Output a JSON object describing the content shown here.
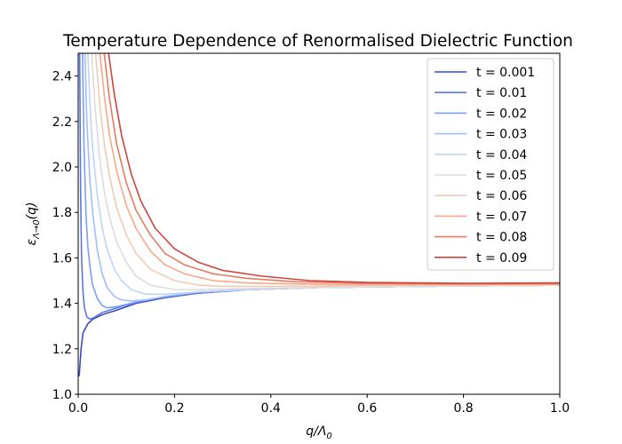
{
  "chart_data": {
    "type": "line",
    "title": "Temperature Dependence of Renormalised Dielectric Function",
    "xlabel": "q/Λ0",
    "xlabel_main": "q/Λ",
    "xlabel_sub": "0",
    "ylabel": "εΛ→0(q)",
    "ylabel_main": "ε",
    "ylabel_sub": "Λ→0",
    "ylabel_tail": "(q)",
    "xlim": [
      0.0,
      1.0
    ],
    "ylim": [
      1.0,
      2.5
    ],
    "xticks": [
      "0.0",
      "0.2",
      "0.4",
      "0.6",
      "0.8",
      "1.0"
    ],
    "yticks": [
      "1.0",
      "1.2",
      "1.4",
      "1.6",
      "1.8",
      "2.0",
      "2.2",
      "2.4"
    ],
    "legend_position": "top-right",
    "series": [
      {
        "name": "t = 0.001",
        "color": "#3b4cc0",
        "points": [
          [
            0.002,
            1.08
          ],
          [
            0.006,
            1.2
          ],
          [
            0.01,
            1.27
          ],
          [
            0.02,
            1.31
          ],
          [
            0.03,
            1.33
          ],
          [
            0.05,
            1.35
          ],
          [
            0.08,
            1.37
          ],
          [
            0.12,
            1.4
          ],
          [
            0.18,
            1.425
          ],
          [
            0.25,
            1.445
          ],
          [
            0.35,
            1.46
          ],
          [
            0.5,
            1.47
          ],
          [
            0.7,
            1.475
          ],
          [
            1.0,
            1.48
          ]
        ]
      },
      {
        "name": "t = 0.01",
        "color": "#5a78e4",
        "points": [
          [
            0.003,
            2.5
          ],
          [
            0.005,
            1.9
          ],
          [
            0.007,
            1.6
          ],
          [
            0.01,
            1.45
          ],
          [
            0.013,
            1.38
          ],
          [
            0.018,
            1.34
          ],
          [
            0.025,
            1.33
          ],
          [
            0.035,
            1.34
          ],
          [
            0.05,
            1.36
          ],
          [
            0.08,
            1.38
          ],
          [
            0.12,
            1.405
          ],
          [
            0.18,
            1.43
          ],
          [
            0.25,
            1.445
          ],
          [
            0.35,
            1.46
          ],
          [
            0.5,
            1.47
          ],
          [
            0.7,
            1.475
          ],
          [
            1.0,
            1.48
          ]
        ]
      },
      {
        "name": "t = 0.02",
        "color": "#7b9ff9",
        "points": [
          [
            0.009,
            2.5
          ],
          [
            0.012,
            2.1
          ],
          [
            0.016,
            1.8
          ],
          [
            0.02,
            1.65
          ],
          [
            0.025,
            1.55
          ],
          [
            0.03,
            1.48
          ],
          [
            0.04,
            1.42
          ],
          [
            0.05,
            1.39
          ],
          [
            0.06,
            1.38
          ],
          [
            0.08,
            1.385
          ],
          [
            0.12,
            1.405
          ],
          [
            0.18,
            1.43
          ],
          [
            0.25,
            1.45
          ],
          [
            0.35,
            1.46
          ],
          [
            0.5,
            1.47
          ],
          [
            0.7,
            1.475
          ],
          [
            1.0,
            1.48
          ]
        ]
      },
      {
        "name": "t = 0.03",
        "color": "#9ebeff",
        "points": [
          [
            0.014,
            2.5
          ],
          [
            0.018,
            2.2
          ],
          [
            0.024,
            1.95
          ],
          [
            0.03,
            1.8
          ],
          [
            0.04,
            1.63
          ],
          [
            0.05,
            1.53
          ],
          [
            0.06,
            1.47
          ],
          [
            0.075,
            1.43
          ],
          [
            0.09,
            1.415
          ],
          [
            0.11,
            1.41
          ],
          [
            0.14,
            1.415
          ],
          [
            0.18,
            1.43
          ],
          [
            0.25,
            1.45
          ],
          [
            0.35,
            1.46
          ],
          [
            0.5,
            1.47
          ],
          [
            0.7,
            1.475
          ],
          [
            1.0,
            1.48
          ]
        ]
      },
      {
        "name": "t = 0.04",
        "color": "#c0d4f5",
        "points": [
          [
            0.02,
            2.5
          ],
          [
            0.025,
            2.25
          ],
          [
            0.03,
            2.08
          ],
          [
            0.04,
            1.87
          ],
          [
            0.05,
            1.73
          ],
          [
            0.06,
            1.64
          ],
          [
            0.075,
            1.55
          ],
          [
            0.09,
            1.5
          ],
          [
            0.11,
            1.46
          ],
          [
            0.14,
            1.44
          ],
          [
            0.18,
            1.44
          ],
          [
            0.25,
            1.45
          ],
          [
            0.35,
            1.46
          ],
          [
            0.5,
            1.47
          ],
          [
            0.7,
            1.475
          ],
          [
            1.0,
            1.48
          ]
        ]
      },
      {
        "name": "t = 0.05",
        "color": "#dddcdc",
        "points": [
          [
            0.028,
            2.5
          ],
          [
            0.035,
            2.26
          ],
          [
            0.045,
            2.03
          ],
          [
            0.055,
            1.88
          ],
          [
            0.065,
            1.78
          ],
          [
            0.08,
            1.67
          ],
          [
            0.1,
            1.58
          ],
          [
            0.12,
            1.52
          ],
          [
            0.15,
            1.48
          ],
          [
            0.2,
            1.46
          ],
          [
            0.25,
            1.46
          ],
          [
            0.35,
            1.465
          ],
          [
            0.5,
            1.47
          ],
          [
            0.7,
            1.475
          ],
          [
            1.0,
            1.48
          ]
        ]
      },
      {
        "name": "t = 0.06",
        "color": "#f2cbb7",
        "points": [
          [
            0.036,
            2.5
          ],
          [
            0.045,
            2.27
          ],
          [
            0.055,
            2.09
          ],
          [
            0.065,
            1.96
          ],
          [
            0.08,
            1.82
          ],
          [
            0.1,
            1.7
          ],
          [
            0.12,
            1.62
          ],
          [
            0.15,
            1.55
          ],
          [
            0.2,
            1.5
          ],
          [
            0.25,
            1.48
          ],
          [
            0.3,
            1.475
          ],
          [
            0.4,
            1.475
          ],
          [
            0.6,
            1.478
          ],
          [
            0.8,
            1.48
          ],
          [
            1.0,
            1.48
          ]
        ]
      },
      {
        "name": "t = 0.07",
        "color": "#f7a889",
        "points": [
          [
            0.045,
            2.5
          ],
          [
            0.055,
            2.3
          ],
          [
            0.065,
            2.14
          ],
          [
            0.08,
            1.98
          ],
          [
            0.1,
            1.83
          ],
          [
            0.12,
            1.73
          ],
          [
            0.15,
            1.63
          ],
          [
            0.18,
            1.57
          ],
          [
            0.22,
            1.53
          ],
          [
            0.28,
            1.5
          ],
          [
            0.35,
            1.49
          ],
          [
            0.45,
            1.485
          ],
          [
            0.6,
            1.483
          ],
          [
            0.8,
            1.483
          ],
          [
            1.0,
            1.485
          ]
        ]
      },
      {
        "name": "t = 0.08",
        "color": "#e67b61",
        "points": [
          [
            0.054,
            2.5
          ],
          [
            0.065,
            2.3
          ],
          [
            0.08,
            2.1
          ],
          [
            0.1,
            1.93
          ],
          [
            0.12,
            1.81
          ],
          [
            0.15,
            1.7
          ],
          [
            0.18,
            1.62
          ],
          [
            0.22,
            1.57
          ],
          [
            0.28,
            1.53
          ],
          [
            0.35,
            1.51
          ],
          [
            0.45,
            1.495
          ],
          [
            0.6,
            1.488
          ],
          [
            0.8,
            1.486
          ],
          [
            1.0,
            1.487
          ]
        ]
      },
      {
        "name": "t = 0.09",
        "color": "#cf453c",
        "points": [
          [
            0.063,
            2.5
          ],
          [
            0.075,
            2.32
          ],
          [
            0.09,
            2.14
          ],
          [
            0.11,
            1.97
          ],
          [
            0.13,
            1.85
          ],
          [
            0.16,
            1.73
          ],
          [
            0.2,
            1.64
          ],
          [
            0.25,
            1.58
          ],
          [
            0.3,
            1.545
          ],
          [
            0.38,
            1.52
          ],
          [
            0.48,
            1.5
          ],
          [
            0.6,
            1.492
          ],
          [
            0.8,
            1.488
          ],
          [
            1.0,
            1.49
          ]
        ]
      }
    ]
  }
}
